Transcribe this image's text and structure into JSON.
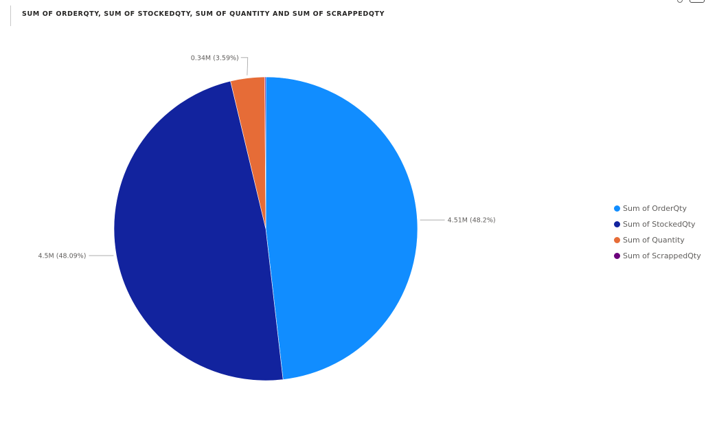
{
  "visual": {
    "title": "SUM OF ORDERQTY, SUM OF STOCKEDQTY, SUM OF QUANTITY AND SUM OF SCRAPPEDQTY"
  },
  "chart_data": {
    "type": "pie",
    "title": "SUM OF ORDERQTY, SUM OF STOCKEDQTY, SUM OF QUANTITY AND SUM OF SCRAPPEDQTY",
    "legend_position": "right",
    "slices": [
      {
        "name": "Sum of OrderQty",
        "value": 4.51,
        "percent": 48.2,
        "label": "4.51M (48.2%)",
        "color": "#118DFF"
      },
      {
        "name": "Sum of StockedQty",
        "value": 4.5,
        "percent": 48.09,
        "label": "4.5M (48.09%)",
        "color": "#12239E"
      },
      {
        "name": "Sum of Quantity",
        "value": 0.34,
        "percent": 3.59,
        "label": "0.34M (3.59%)",
        "color": "#E66C37"
      },
      {
        "name": "Sum of ScrappedQty",
        "value": 0.01,
        "percent": 0.12,
        "label": "",
        "color": "#6B007B"
      }
    ]
  }
}
